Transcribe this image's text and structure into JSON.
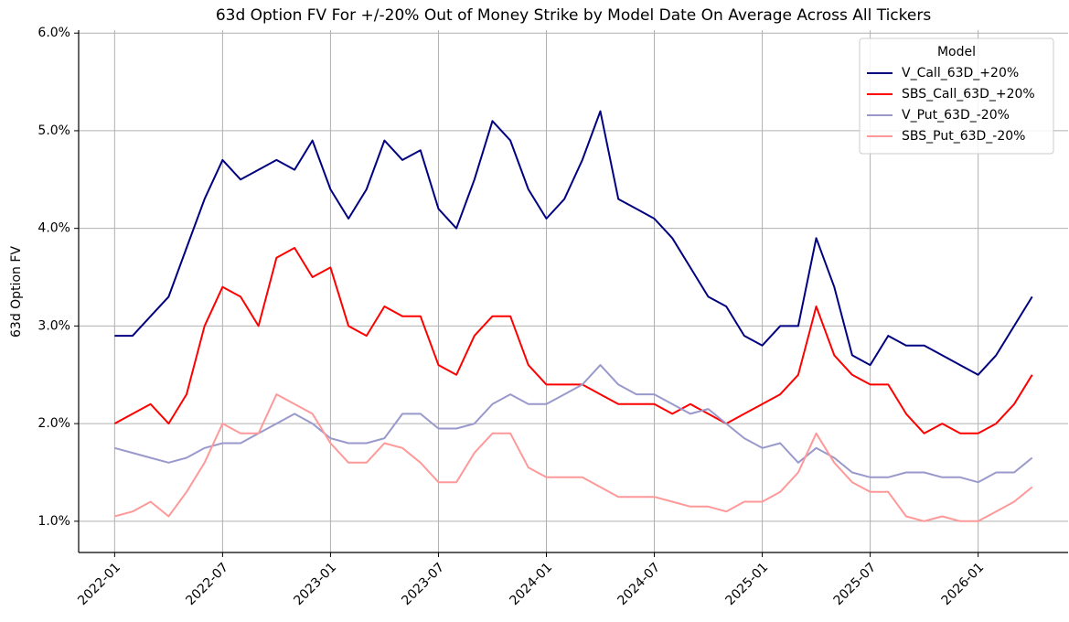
{
  "chart_data": {
    "type": "line",
    "title": "63d Option FV For +/-20% Out of Money Strike by Model Date On Average Across All Tickers",
    "y_label": "63d Option FV",
    "legend_title": "Model",
    "legend": "upper right",
    "grid": true,
    "x": [
      "2022-01",
      "2022-02",
      "2022-03",
      "2022-04",
      "2022-05",
      "2022-06",
      "2022-07",
      "2022-08",
      "2022-09",
      "2022-10",
      "2022-11",
      "2022-12",
      "2023-01",
      "2023-02",
      "2023-03",
      "2023-04",
      "2023-05",
      "2023-06",
      "2023-07",
      "2023-08",
      "2023-09",
      "2023-10",
      "2023-11",
      "2023-12",
      "2024-01",
      "2024-02",
      "2024-03",
      "2024-04",
      "2024-05",
      "2024-06",
      "2024-07",
      "2024-08",
      "2024-09",
      "2024-10",
      "2024-11",
      "2024-12",
      "2025-01",
      "2025-02",
      "2025-03",
      "2025-04",
      "2025-05",
      "2025-06",
      "2025-07",
      "2025-08",
      "2025-09",
      "2025-10",
      "2025-11",
      "2025-12",
      "2026-01",
      "2026-02",
      "2026-03",
      "2026-04"
    ],
    "xlim": [
      "2021-11",
      "2026-06"
    ],
    "xticks": [
      "2022-01",
      "2022-07",
      "2023-01",
      "2023-07",
      "2024-01",
      "2024-07",
      "2025-01",
      "2025-07",
      "2026-01"
    ],
    "ylim": [
      0.68,
      6.03
    ],
    "yticks": [
      {
        "value": 1,
        "label": "1.0%"
      },
      {
        "value": 2,
        "label": "2.0%"
      },
      {
        "value": 3,
        "label": "3.0%"
      },
      {
        "value": 4,
        "label": "4.0%"
      },
      {
        "value": 5,
        "label": "5.0%"
      },
      {
        "value": 6,
        "label": "6.0%"
      }
    ],
    "series": [
      {
        "name": "V_Call_63D_+20%",
        "color": "#000080",
        "values": [
          2.9,
          2.9,
          3.1,
          3.3,
          3.8,
          4.3,
          4.7,
          4.5,
          4.6,
          4.7,
          4.6,
          4.9,
          4.4,
          4.1,
          4.4,
          4.9,
          4.7,
          4.8,
          4.2,
          4.0,
          4.5,
          5.1,
          4.9,
          4.4,
          4.1,
          4.3,
          4.7,
          5.2,
          4.3,
          4.2,
          4.1,
          3.9,
          3.6,
          3.3,
          3.2,
          2.9,
          2.8,
          3.0,
          3.0,
          3.9,
          3.4,
          2.7,
          2.6,
          2.9,
          2.8,
          2.8,
          2.7,
          2.6,
          2.5,
          2.7,
          3.0,
          3.3
        ]
      },
      {
        "name": "SBS_Call_63D_+20%",
        "color": "#ff0000",
        "values": [
          2.0,
          2.1,
          2.2,
          2.0,
          2.3,
          3.0,
          3.4,
          3.3,
          3.0,
          3.7,
          3.8,
          3.5,
          3.6,
          3.0,
          2.9,
          3.2,
          3.1,
          3.1,
          2.6,
          2.5,
          2.9,
          3.1,
          3.1,
          2.6,
          2.4,
          2.4,
          2.4,
          2.3,
          2.2,
          2.2,
          2.2,
          2.1,
          2.2,
          2.1,
          2.0,
          2.1,
          2.2,
          2.3,
          2.5,
          3.2,
          2.7,
          2.5,
          2.4,
          2.4,
          2.1,
          1.9,
          2.0,
          1.9,
          1.9,
          2.0,
          2.2,
          2.5
        ]
      },
      {
        "name": "V_Put_63D_-20%",
        "color": "#9999cc",
        "values": [
          1.75,
          1.7,
          1.65,
          1.6,
          1.65,
          1.75,
          1.8,
          1.8,
          1.9,
          2.0,
          2.1,
          2.0,
          1.85,
          1.8,
          1.8,
          1.85,
          2.1,
          2.1,
          1.95,
          1.95,
          2.0,
          2.2,
          2.3,
          2.2,
          2.2,
          2.3,
          2.4,
          2.6,
          2.4,
          2.3,
          2.3,
          2.2,
          2.1,
          2.15,
          2.0,
          1.85,
          1.75,
          1.8,
          1.6,
          1.75,
          1.65,
          1.5,
          1.45,
          1.45,
          1.5,
          1.5,
          1.45,
          1.45,
          1.4,
          1.5,
          1.5,
          1.65
        ]
      },
      {
        "name": "SBS_Put_63D_-20%",
        "color": "#ff9999",
        "values": [
          1.05,
          1.1,
          1.2,
          1.05,
          1.3,
          1.6,
          2.0,
          1.9,
          1.9,
          2.3,
          2.2,
          2.1,
          1.8,
          1.6,
          1.6,
          1.8,
          1.75,
          1.6,
          1.4,
          1.4,
          1.7,
          1.9,
          1.9,
          1.55,
          1.45,
          1.45,
          1.45,
          1.35,
          1.25,
          1.25,
          1.25,
          1.2,
          1.15,
          1.15,
          1.1,
          1.2,
          1.2,
          1.3,
          1.5,
          1.9,
          1.6,
          1.4,
          1.3,
          1.3,
          1.05,
          1.0,
          1.05,
          1.0,
          1.0,
          1.1,
          1.2,
          1.35
        ]
      }
    ]
  }
}
